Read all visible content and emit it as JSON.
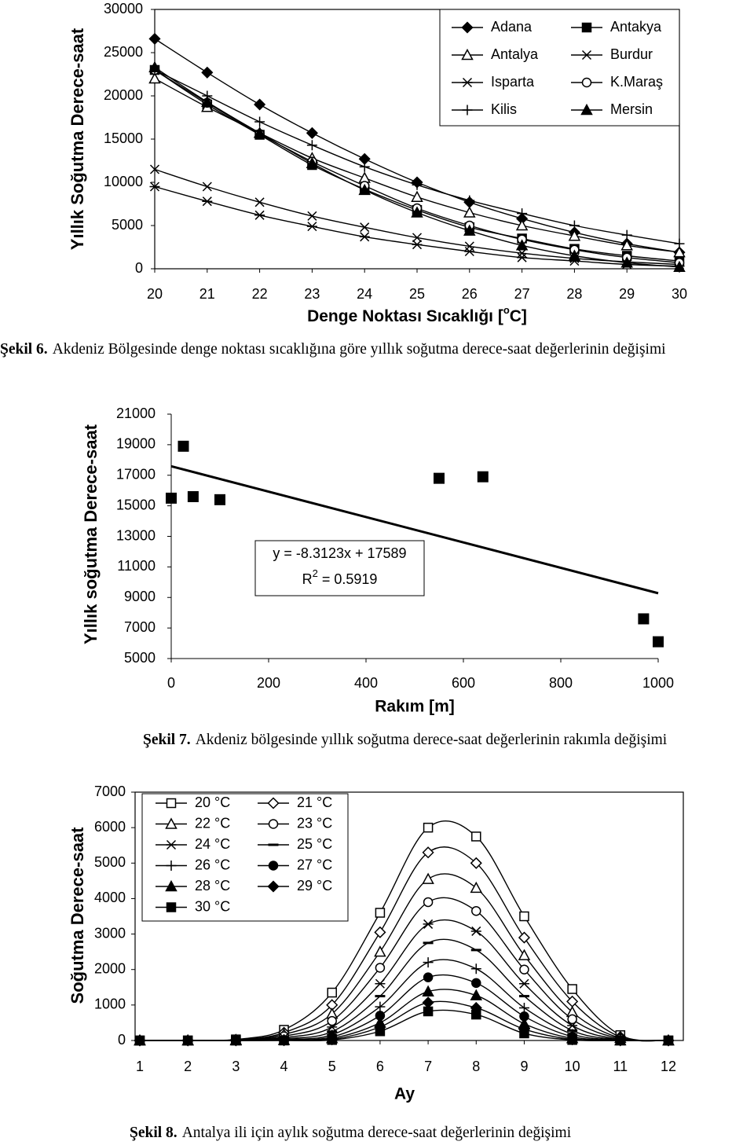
{
  "chart_data": [
    {
      "type": "line",
      "color": "#000000",
      "y_label": "Yıllık Soğutma Derece-saat",
      "x_label_parts": [
        "Denge Noktası Sıcaklığı [",
        "o",
        "C]"
      ],
      "x": [
        20,
        21,
        22,
        23,
        24,
        25,
        26,
        27,
        28,
        29,
        30
      ],
      "xlim": [
        20,
        30
      ],
      "xticks": [
        20,
        21,
        22,
        23,
        24,
        25,
        26,
        27,
        28,
        29,
        30
      ],
      "ylim": [
        0,
        30000
      ],
      "yticks": [
        0,
        5000,
        10000,
        15000,
        20000,
        25000,
        30000
      ],
      "legend": "upper right",
      "smooth": true,
      "series": [
        {
          "name": "Adana",
          "marker": "diamond",
          "filled": true,
          "values": [
            26600,
            22700,
            19000,
            15700,
            12700,
            10000,
            7700,
            5800,
            4200,
            2900,
            1900
          ]
        },
        {
          "name": "Antakya",
          "marker": "square",
          "filled": true,
          "values": [
            23000,
            19000,
            15500,
            12000,
            9200,
            6800,
            4800,
            3500,
            2300,
            1500,
            900
          ]
        },
        {
          "name": "Antalya",
          "marker": "triangle",
          "filled": false,
          "values": [
            22000,
            18700,
            15700,
            12800,
            10500,
            8300,
            6500,
            5000,
            3800,
            2700,
            1900
          ]
        },
        {
          "name": "Burdur",
          "marker": "x",
          "filled": false,
          "values": [
            11500,
            9500,
            7700,
            6100,
            4800,
            3600,
            2600,
            1800,
            1200,
            800,
            500
          ]
        },
        {
          "name": "Isparta",
          "marker": "star",
          "filled": false,
          "values": [
            9500,
            7800,
            6200,
            4900,
            3700,
            2800,
            2000,
            1300,
            900,
            500,
            300
          ]
        },
        {
          "name": "K.Maraş",
          "marker": "circle",
          "filled": false,
          "values": [
            23000,
            19200,
            15600,
            12400,
            9600,
            7000,
            5000,
            3400,
            2200,
            1300,
            700
          ]
        },
        {
          "name": "Kilis",
          "marker": "plus",
          "filled": false,
          "values": [
            23000,
            20000,
            17000,
            14300,
            11800,
            9700,
            7900,
            6400,
            5000,
            3900,
            2900
          ]
        },
        {
          "name": "Mersin",
          "marker": "triangle",
          "filled": true,
          "values": [
            23300,
            19300,
            15700,
            12200,
            9100,
            6500,
            4400,
            2700,
            1500,
            700,
            200
          ]
        }
      ],
      "caption": {
        "label": "Şekil 6.",
        "text": "Akdeniz Bölgesinde denge noktası sıcaklığına göre yıllık soğutma derece-saat değerlerinin değişimi"
      }
    },
    {
      "type": "scatter",
      "color": "#000000",
      "y_label": "Yıllık soğutma Derece-saat",
      "x_label": "Rakım [m]",
      "x": [
        0,
        25,
        45,
        100,
        550,
        640,
        970,
        1000
      ],
      "values": [
        15500,
        18900,
        15600,
        15400,
        16800,
        16900,
        7600,
        6100
      ],
      "xlim": [
        0,
        1000
      ],
      "xticks": [
        0,
        200,
        400,
        600,
        800,
        1000
      ],
      "ylim": [
        5000,
        21000
      ],
      "yticks": [
        5000,
        7000,
        9000,
        11000,
        13000,
        15000,
        17000,
        19000,
        21000
      ],
      "trendline": {
        "slope": -8.3123,
        "intercept": 17589
      },
      "equation": "y = -8.3123x + 17589",
      "r2_parts": [
        "R",
        "2",
        " = 0.5919"
      ],
      "caption": {
        "label": "Şekil 7.",
        "text": "Akdeniz bölgesinde yıllık soğutma derece-saat değerlerinin rakımla değişimi"
      }
    },
    {
      "type": "line",
      "color": "#000000",
      "y_label": "Soğutma Derece-saat",
      "x_label": "Ay",
      "x": [
        1,
        2,
        3,
        4,
        5,
        6,
        7,
        8,
        9,
        10,
        11,
        12
      ],
      "xlim": [
        1,
        12
      ],
      "xticks": [
        1,
        2,
        3,
        4,
        5,
        6,
        7,
        8,
        9,
        10,
        11,
        12
      ],
      "ylim": [
        0,
        7000
      ],
      "yticks": [
        0,
        1000,
        2000,
        3000,
        4000,
        5000,
        6000,
        7000
      ],
      "legend": "upper left",
      "smooth": true,
      "series": [
        {
          "name": "20 °C",
          "marker": "square",
          "filled": false,
          "values": [
            0,
            0,
            30,
            300,
            1350,
            3600,
            6000,
            5750,
            3500,
            1450,
            150,
            0
          ]
        },
        {
          "name": "21 °C",
          "marker": "diamond",
          "filled": false,
          "values": [
            0,
            0,
            20,
            220,
            1000,
            3050,
            5300,
            5000,
            2900,
            1100,
            100,
            0
          ]
        },
        {
          "name": "22 °C",
          "marker": "triangle",
          "filled": false,
          "values": [
            0,
            0,
            15,
            170,
            750,
            2500,
            4550,
            4300,
            2400,
            800,
            70,
            0
          ]
        },
        {
          "name": "23 °C",
          "marker": "circle",
          "filled": false,
          "values": [
            0,
            0,
            10,
            120,
            550,
            2050,
            3900,
            3650,
            2000,
            600,
            50,
            0
          ]
        },
        {
          "name": "24 °C",
          "marker": "star",
          "filled": false,
          "values": [
            0,
            0,
            5,
            80,
            380,
            1600,
            3280,
            3080,
            1600,
            420,
            30,
            0
          ]
        },
        {
          "name": "25 °C",
          "marker": "dash",
          "filled": true,
          "values": [
            0,
            0,
            0,
            50,
            250,
            1250,
            2750,
            2550,
            1250,
            280,
            20,
            0
          ]
        },
        {
          "name": "26 °C",
          "marker": "plus",
          "filled": false,
          "values": [
            0,
            0,
            0,
            30,
            160,
            950,
            2200,
            2020,
            920,
            180,
            10,
            0
          ]
        },
        {
          "name": "27 °C",
          "marker": "circle",
          "filled": true,
          "values": [
            0,
            0,
            0,
            15,
            100,
            700,
            1780,
            1620,
            680,
            110,
            5,
            0
          ]
        },
        {
          "name": "28 °C",
          "marker": "triangle",
          "filled": true,
          "values": [
            0,
            0,
            0,
            8,
            60,
            500,
            1380,
            1270,
            470,
            60,
            0,
            0
          ]
        },
        {
          "name": "29 °C",
          "marker": "diamond",
          "filled": true,
          "values": [
            0,
            0,
            0,
            4,
            30,
            380,
            1070,
            920,
            320,
            30,
            0,
            0
          ]
        },
        {
          "name": "30 °C",
          "marker": "square",
          "filled": true,
          "values": [
            0,
            0,
            0,
            0,
            15,
            260,
            820,
            730,
            200,
            15,
            0,
            0
          ]
        }
      ],
      "caption": {
        "label": "Şekil 8.",
        "text": "Antalya ili için aylık soğutma derece-saat değerlerinin değişimi"
      }
    }
  ]
}
